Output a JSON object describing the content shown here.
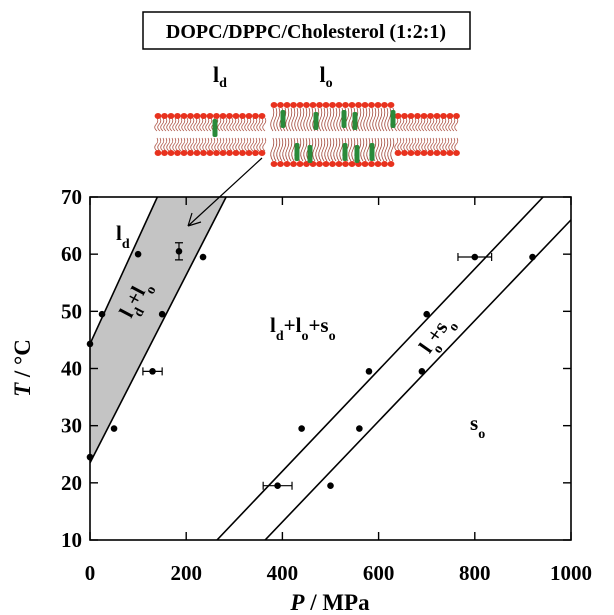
{
  "chart_data": {
    "type": "scatter",
    "title": "DOPC/DPPC/Cholesterol (1:2:1)",
    "membrane_labels": [
      [
        "l",
        "d"
      ],
      [
        "l",
        "o"
      ]
    ],
    "x_label": [
      "P",
      " / MPa"
    ],
    "y_label": [
      "T",
      " / °C"
    ],
    "xlim": [
      0,
      1000
    ],
    "ylim": [
      10,
      70
    ],
    "xticks": [
      0,
      200,
      400,
      600,
      800,
      1000
    ],
    "yticks": [
      10,
      20,
      30,
      40,
      50,
      60,
      70
    ],
    "series": [
      {
        "color": "#000000",
        "x": [
          0,
          0,
          25,
          50,
          100,
          130,
          150,
          185,
          235,
          390,
          440,
          500,
          560,
          580,
          690,
          700,
          800,
          920
        ],
        "y": [
          24.5,
          44.3,
          49.5,
          29.5,
          60,
          39.5,
          49.5,
          60.5,
          59.5,
          19.5,
          29.5,
          19.5,
          29.5,
          39.5,
          39.5,
          49.5,
          59.5,
          59.5
        ],
        "xerr": [
          null,
          null,
          null,
          null,
          null,
          20,
          null,
          null,
          null,
          30,
          null,
          null,
          null,
          null,
          null,
          null,
          35,
          null
        ],
        "yerr": [
          null,
          null,
          null,
          null,
          null,
          null,
          null,
          1.5,
          null,
          null,
          null,
          null,
          null,
          null,
          null,
          null,
          null,
          null
        ]
      }
    ],
    "boundaries": [
      {
        "x": [
          0,
          140
        ],
        "y": [
          44.3,
          70
        ]
      },
      {
        "x": [
          0,
          283
        ],
        "y": [
          23.5,
          70
        ]
      },
      {
        "x": [
          264,
          942
        ],
        "y": [
          10,
          70
        ]
      },
      {
        "x": [
          364,
          1000
        ],
        "y": [
          10,
          66
        ]
      }
    ],
    "shade_color": "#c4c4c4",
    "annotations": [
      [
        [
          "l",
          "d"
        ]
      ],
      [
        [
          "l",
          "d"
        ],
        [
          "+l",
          "o"
        ]
      ],
      [
        [
          "l",
          "d"
        ],
        [
          "+l",
          "o"
        ],
        [
          "+s",
          "o"
        ]
      ],
      [
        [
          "l",
          "o"
        ],
        [
          "+s",
          "o"
        ]
      ],
      [
        [
          "s",
          "o"
        ]
      ]
    ]
  }
}
